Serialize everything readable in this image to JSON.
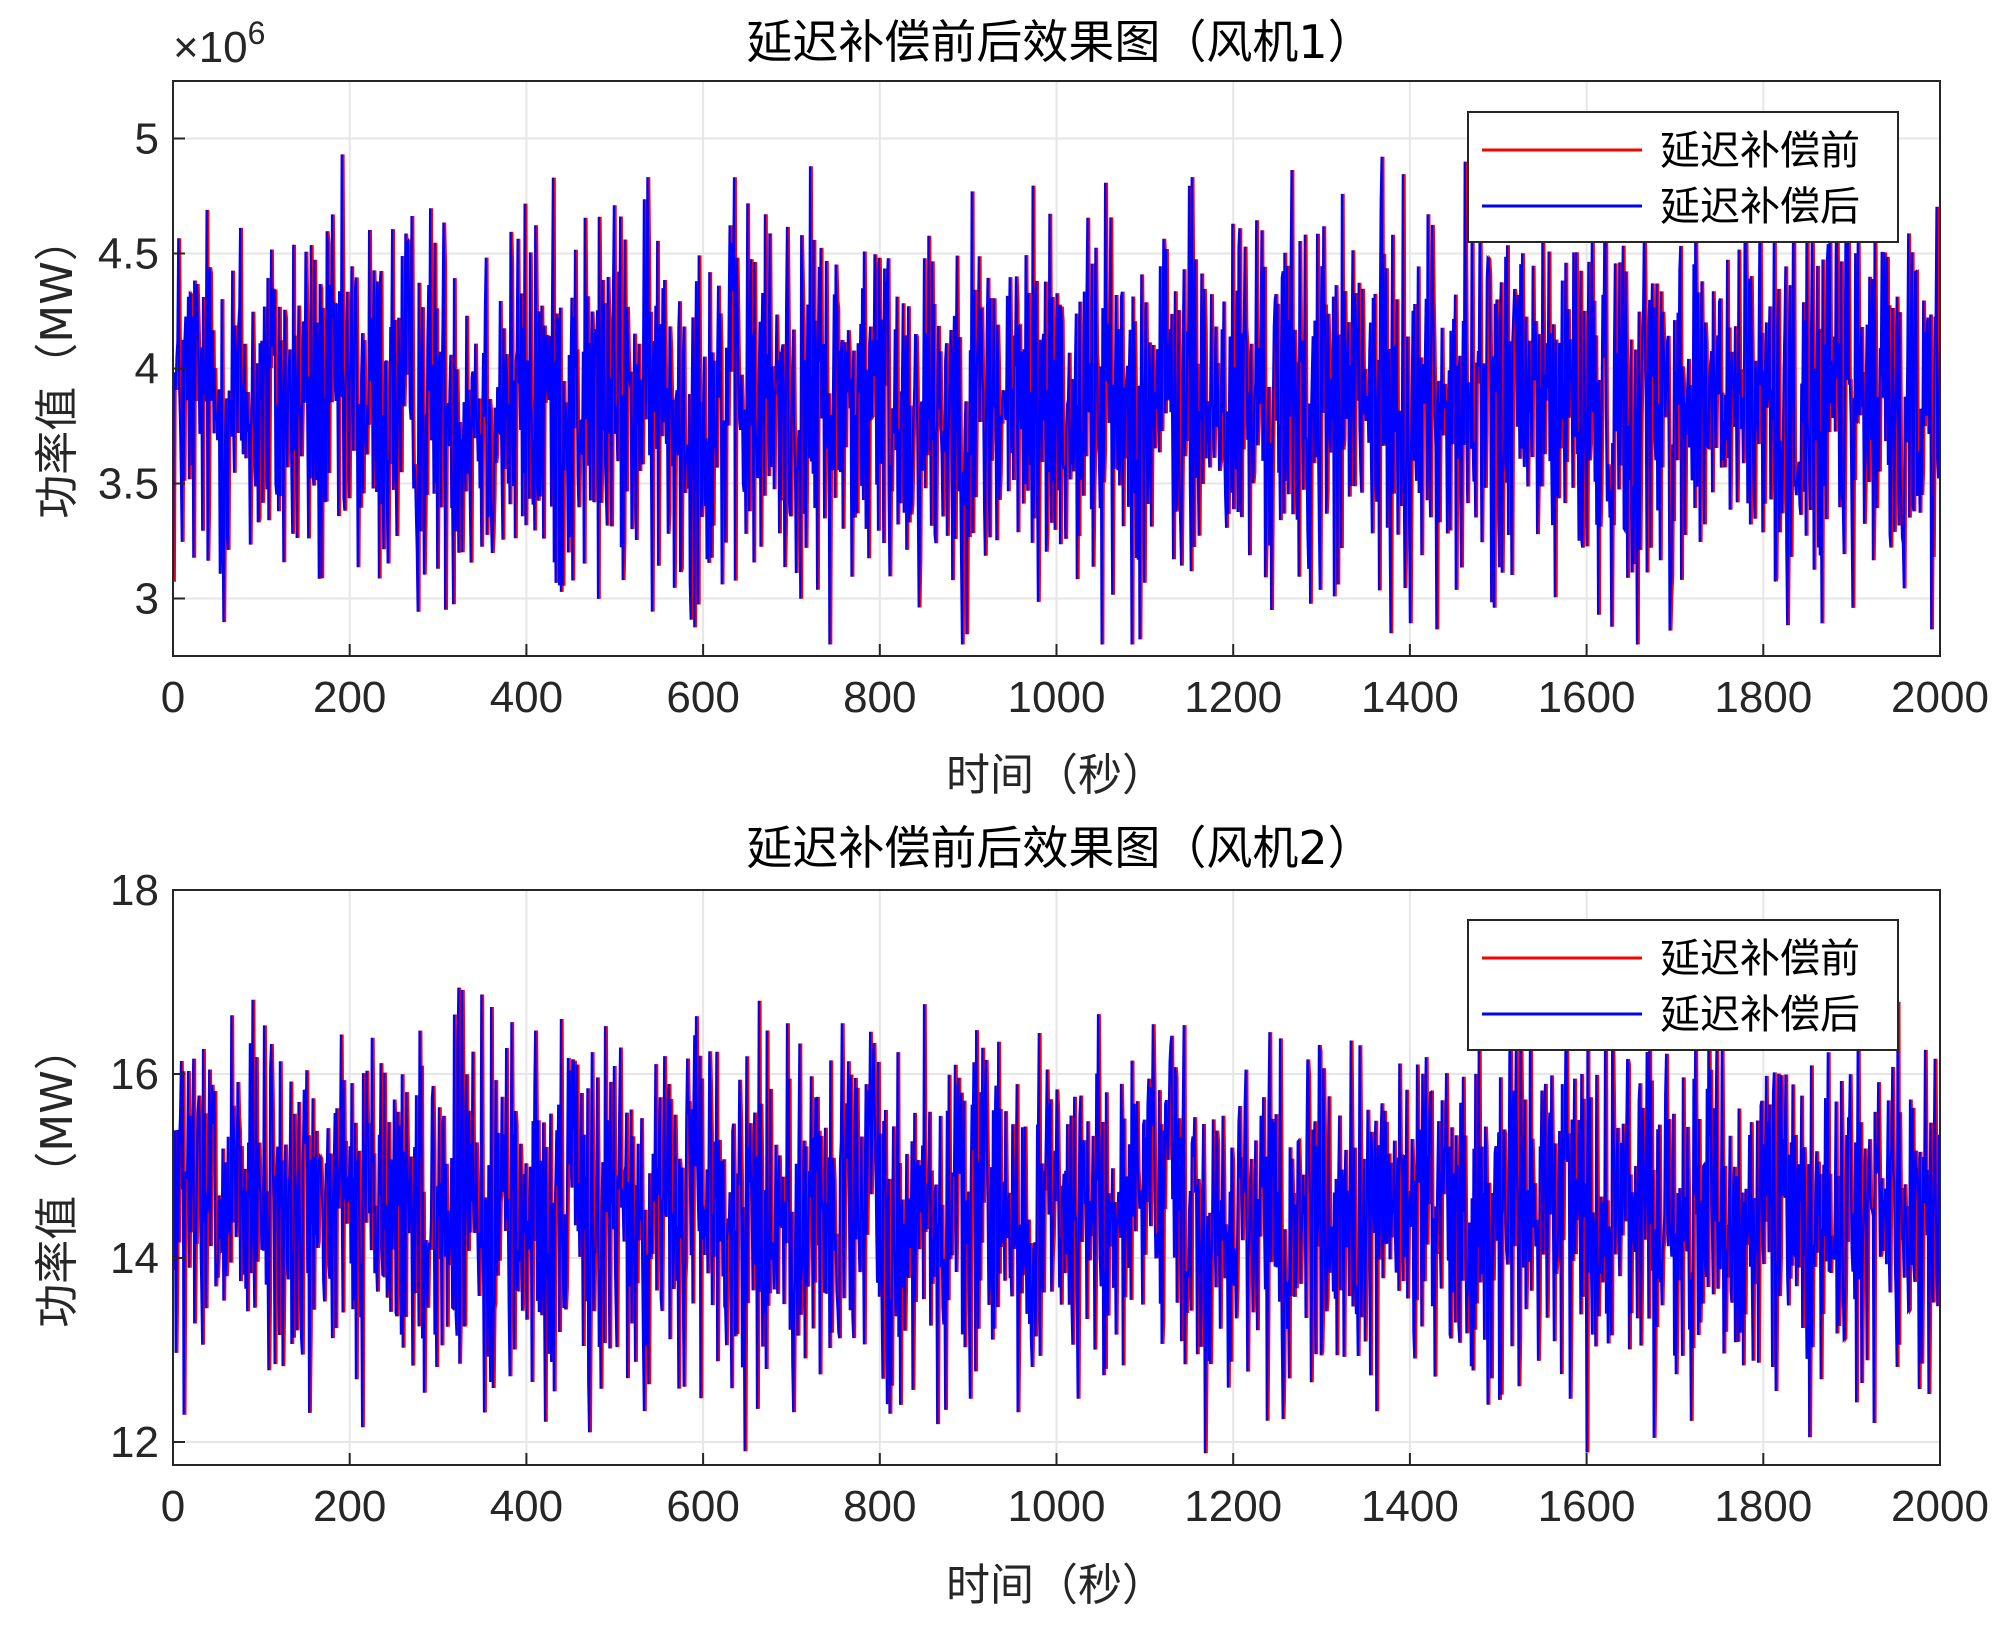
{
  "chart_data": [
    {
      "type": "line",
      "title": "延迟补偿前后效果图（风机1）",
      "xlabel": "时间（秒）",
      "ylabel": "功率值（MW）",
      "y_exponent_label": "×10",
      "y_exponent_power": "6",
      "xlim": [
        0,
        2000
      ],
      "ylim": [
        2.75,
        5.25
      ],
      "y_scale_multiplier": 1000000,
      "x_ticks": [
        0,
        200,
        400,
        600,
        800,
        1000,
        1200,
        1400,
        1600,
        1800,
        2000
      ],
      "x_tick_labels": [
        "0",
        "200",
        "400",
        "600",
        "800",
        "1000",
        "1200",
        "1400",
        "1600",
        "1800",
        "2000"
      ],
      "y_ticks": [
        3,
        3.5,
        4,
        4.5,
        5
      ],
      "y_tick_labels": [
        "3",
        "3.5",
        "4",
        "4.5",
        "5"
      ],
      "grid": true,
      "legend": "top-right",
      "series": [
        {
          "name": "延迟补偿前",
          "color": "#ff0000"
        },
        {
          "name": "延迟补偿后",
          "color": "#0000ff"
        }
      ],
      "x_step": 1,
      "mean": 3.85,
      "typical_range": [
        2.8,
        5.2
      ]
    },
    {
      "type": "line",
      "title": "延迟补偿前后效果图（风机2）",
      "xlabel": "时间（秒）",
      "ylabel": "功率值（MW）",
      "xlim": [
        0,
        2000
      ],
      "ylim": [
        11.75,
        18
      ],
      "x_ticks": [
        0,
        200,
        400,
        600,
        800,
        1000,
        1200,
        1400,
        1600,
        1800,
        2000
      ],
      "x_tick_labels": [
        "0",
        "200",
        "400",
        "600",
        "800",
        "1000",
        "1200",
        "1400",
        "1600",
        "1800",
        "2000"
      ],
      "y_ticks": [
        12,
        14,
        16,
        18
      ],
      "y_tick_labels": [
        "12",
        "14",
        "16",
        "18"
      ],
      "grid": true,
      "legend": "top-right",
      "series": [
        {
          "name": "延迟补偿前",
          "color": "#ff0000"
        },
        {
          "name": "延迟补偿后",
          "color": "#0000ff"
        }
      ],
      "x_step": 1,
      "mean": 14.5,
      "typical_range": [
        11.9,
        17.4
      ]
    }
  ]
}
